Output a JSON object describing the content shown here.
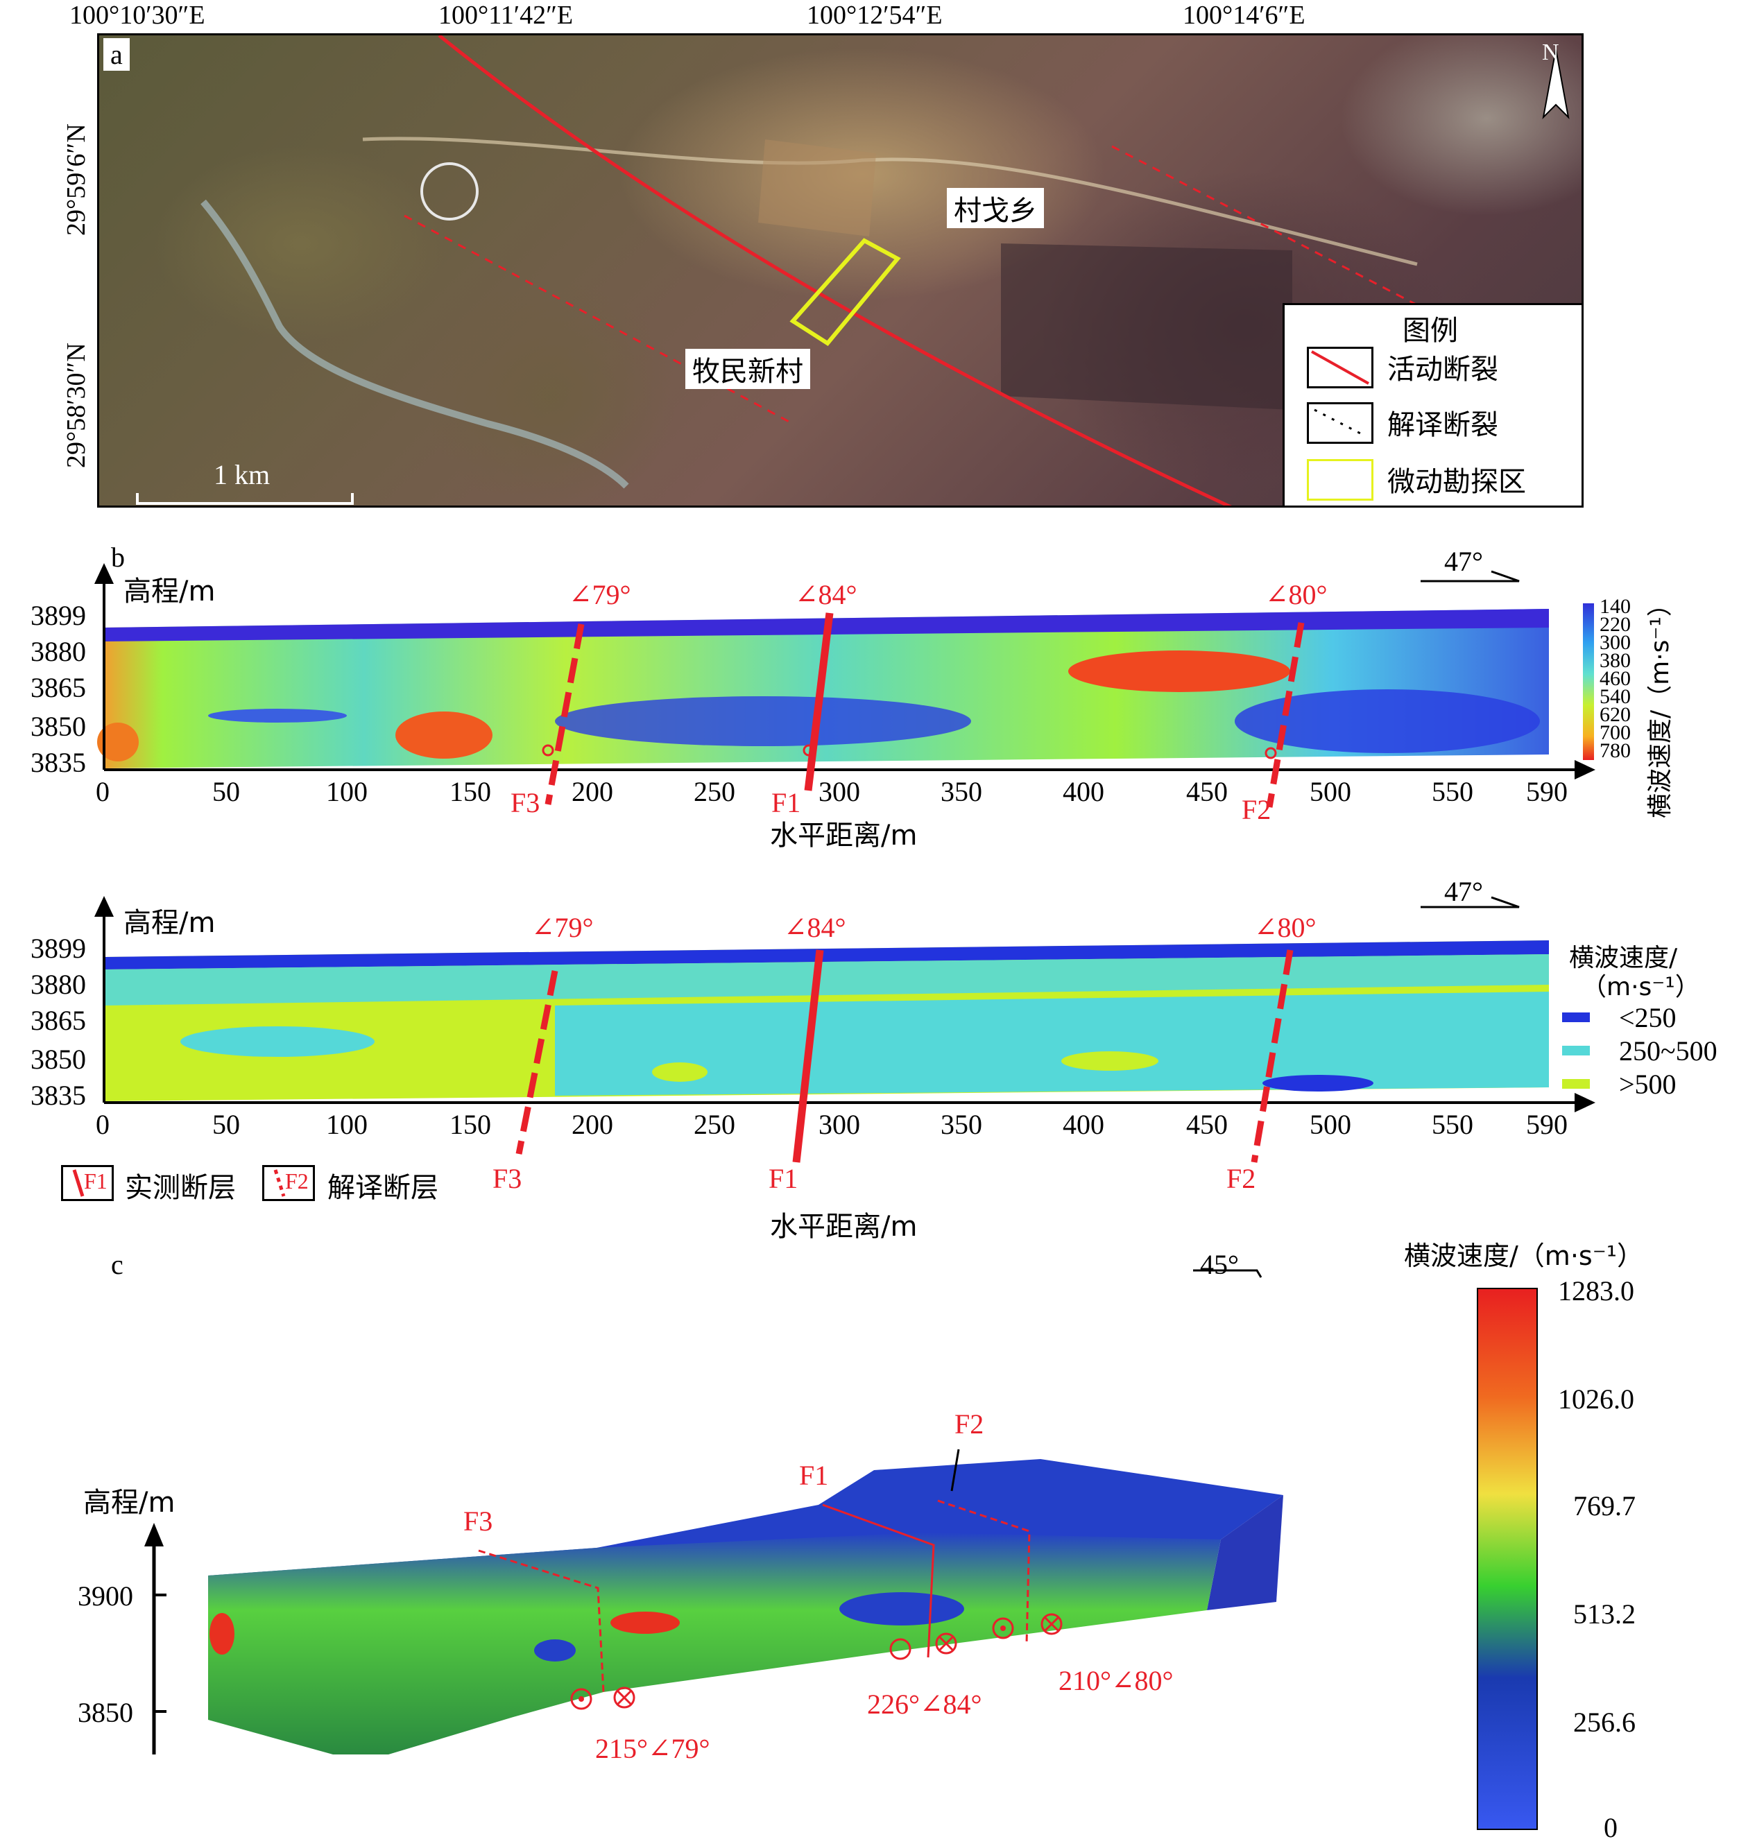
{
  "panel_a": {
    "letter": "a",
    "lon_labels": [
      "100°10′30″E",
      "100°11′42″E",
      "100°12′54″E",
      "100°14′6″E"
    ],
    "lat_labels": [
      "29°59′6″N",
      "29°58′30″N"
    ],
    "places": {
      "village_1": "村戈乡",
      "village_2": "牧民新村"
    },
    "scale_label": "1 km",
    "north": "N",
    "legend": {
      "title": "图例",
      "items": [
        "活动断裂",
        "解译断裂",
        "微动勘探区"
      ]
    }
  },
  "panel_b": {
    "letter": "b",
    "y_title": "高程/m",
    "x_title": "水平距离/m",
    "y_ticks": [
      "3899",
      "3880",
      "3865",
      "3850",
      "3835"
    ],
    "x_ticks": [
      "0",
      "50",
      "100",
      "150",
      "200",
      "250",
      "300",
      "350",
      "400",
      "450",
      "500",
      "550",
      "590"
    ],
    "dips": [
      "∠79°",
      "∠84°",
      "∠80°"
    ],
    "faults": [
      "F3",
      "F1",
      "F2"
    ],
    "azimuth": "47°",
    "colorbar_title": "横波速度/（m·s⁻¹）",
    "colorbar_ticks": [
      "140",
      "220",
      "300",
      "380",
      "460",
      "540",
      "620",
      "700",
      "780"
    ],
    "lower": {
      "y_title": "高程/m",
      "x_title": "水平距离/m",
      "azimuth": "47°",
      "legend_title_1": "横波速度/",
      "legend_title_2": "（m·s⁻¹）",
      "classes": [
        "<250",
        "250~500",
        ">500"
      ],
      "class_colors": [
        "#2233dd",
        "#55d8d8",
        "#c8f028"
      ],
      "fault_legend": [
        "实测断层",
        "解译断层"
      ],
      "fault_legend_marks": [
        "F1",
        "F2"
      ]
    }
  },
  "panel_c": {
    "letter": "c",
    "y_title": "高程/m",
    "y_ticks": [
      "3900",
      "3850"
    ],
    "faults": [
      "F3",
      "F1",
      "F2"
    ],
    "attitudes": [
      "215°∠79°",
      "226°∠84°",
      "210°∠80°"
    ],
    "azimuth": "45°",
    "colorbar_title": "横波速度/（m·s⁻¹）",
    "colorbar_ticks": [
      "1283.0",
      "1026.0",
      "769.7",
      "513.2",
      "256.6",
      "0"
    ]
  },
  "colors": {
    "fault_red": "#e8202a",
    "survey_yellow": "#e6f21e"
  }
}
